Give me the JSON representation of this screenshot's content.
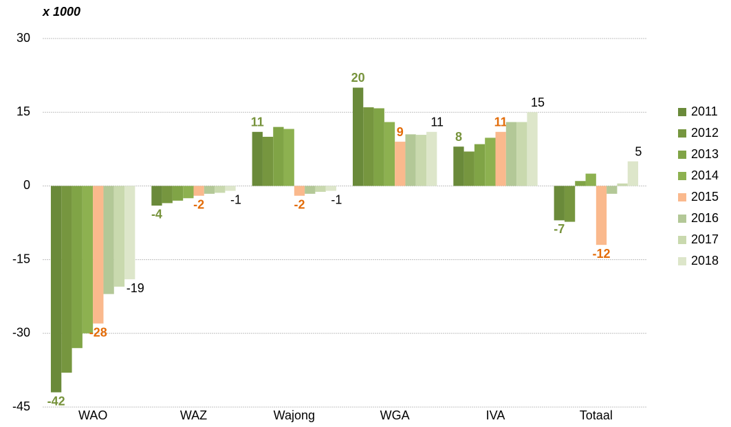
{
  "chart_data": {
    "type": "bar",
    "title": "x 1000",
    "categories": [
      "WAO",
      "WAZ",
      "Wajong",
      "WGA",
      "IVA",
      "Totaal"
    ],
    "series": [
      {
        "name": "2011",
        "color": "#6a8a3a",
        "label_color": "#77933c",
        "values": [
          -42,
          -4,
          11,
          20,
          8,
          -7
        ]
      },
      {
        "name": "2012",
        "color": "#76963f",
        "values": [
          -38,
          -3.5,
          10,
          16,
          7,
          -7.3
        ]
      },
      {
        "name": "2013",
        "color": "#80a446",
        "values": [
          -33,
          -3,
          12,
          15.8,
          8.5,
          1
        ]
      },
      {
        "name": "2014",
        "color": "#8db150",
        "values": [
          -30,
          -2.5,
          11.6,
          13,
          9.8,
          2.5
        ]
      },
      {
        "name": "2015",
        "color": "#fab98d",
        "label_color": "#e36c09",
        "values": [
          -28,
          -2,
          -2,
          9,
          11,
          -12
        ]
      },
      {
        "name": "2016",
        "color": "#b3c897",
        "values": [
          -22,
          -1.6,
          -1.6,
          10.5,
          13,
          -1.6
        ]
      },
      {
        "name": "2017",
        "color": "#c9d9ae",
        "values": [
          -20.5,
          -1.4,
          -1.2,
          10.4,
          13,
          0.5
        ]
      },
      {
        "name": "2018",
        "color": "#dde6ca",
        "label_color": "#000000",
        "values": [
          -19,
          -1,
          -1,
          11,
          15,
          5
        ]
      }
    ],
    "ylim": [
      -45,
      30
    ],
    "yticks": [
      -45,
      -30,
      -15,
      0,
      15,
      30
    ],
    "grid": true,
    "legend": "right"
  }
}
